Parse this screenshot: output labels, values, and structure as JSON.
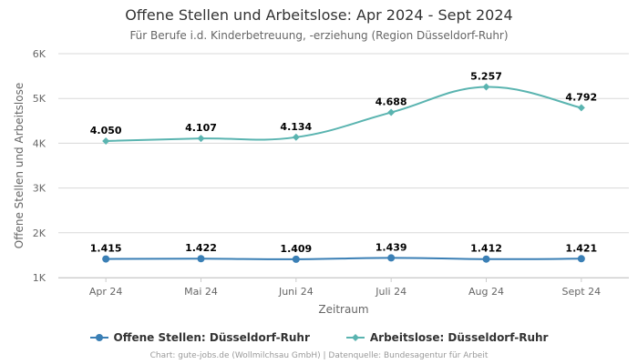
{
  "chart_data": {
    "type": "line",
    "title": "Offene Stellen und Arbeitslose: Apr 2024 - Sept 2024",
    "subtitle": "Für Berufe i.d. Kinderbetreuung, -erziehung (Region Düsseldorf-Ruhr)",
    "xlabel": "Zeitraum",
    "ylabel": "Offene Stellen und Arbeitslose",
    "categories": [
      "Apr 24",
      "Mai 24",
      "Juni 24",
      "Juli 24",
      "Aug 24",
      "Sept 24"
    ],
    "ylim": [
      1000,
      6000
    ],
    "yticks": [
      {
        "value": 1000,
        "label": "1K"
      },
      {
        "value": 2000,
        "label": "2K"
      },
      {
        "value": 3000,
        "label": "3K"
      },
      {
        "value": 4000,
        "label": "4K"
      },
      {
        "value": 5000,
        "label": "5K"
      },
      {
        "value": 6000,
        "label": "6K"
      }
    ],
    "grid": true,
    "legend_position": "bottom",
    "series": [
      {
        "name": "Offene Stellen: Düsseldorf-Ruhr",
        "color": "#3a7fb5",
        "marker": "circle",
        "values": [
          1415,
          1422,
          1409,
          1439,
          1412,
          1421
        ],
        "labels": [
          "1.415",
          "1.422",
          "1.409",
          "1.439",
          "1.412",
          "1.421"
        ]
      },
      {
        "name": "Arbeitslose: Düsseldorf-Ruhr",
        "color": "#5ab4b0",
        "marker": "diamond",
        "values": [
          4050,
          4107,
          4134,
          4688,
          5257,
          4792
        ],
        "labels": [
          "4.050",
          "4.107",
          "4.134",
          "4.688",
          "5.257",
          "4.792"
        ]
      }
    ]
  },
  "credits": "Chart: gute-jobs.de (Wollmilchsau GmbH) | Datenquelle: Bundesagentur für Arbeit"
}
